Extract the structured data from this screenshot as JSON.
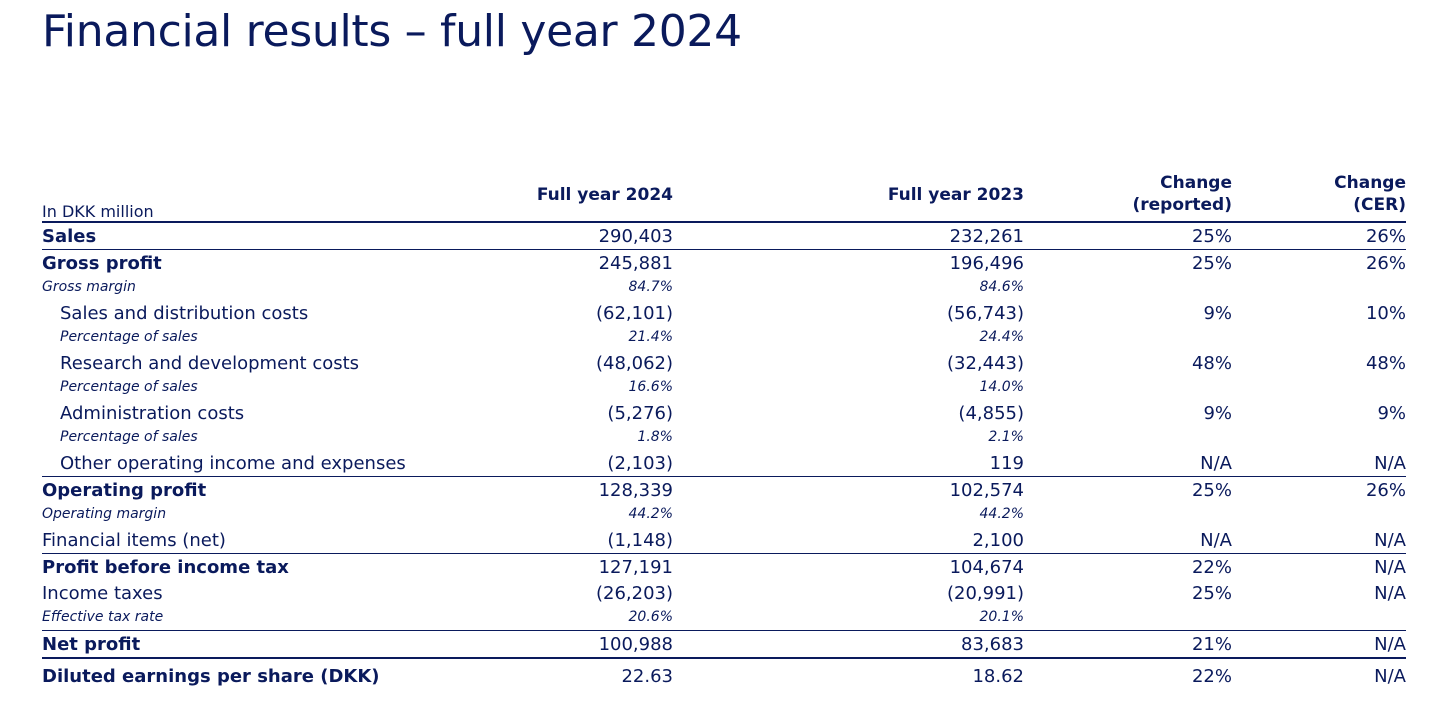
{
  "title": "Financial results – full year 2024",
  "table": {
    "unit_label": "In DKK million",
    "col_fy24": "Full year 2024",
    "col_fy23": "Full year 2023",
    "col_chg_1": "Change",
    "col_chg_2": "(reported)",
    "col_cer_1": "Change",
    "col_cer_2": "(CER)",
    "rows": [
      {
        "label": "Sales",
        "fy24": "290,403",
        "fy23": "232,261",
        "chg": "25%",
        "cer": "26%"
      },
      {
        "label": "Gross profit",
        "fy24": "245,881",
        "fy23": "196,496",
        "chg": "25%",
        "cer": "26%"
      },
      {
        "label": "Gross margin",
        "fy24": "84.7%",
        "fy23": "84.6%",
        "chg": "",
        "cer": ""
      },
      {
        "label": "Sales and distribution costs",
        "fy24": "(62,101)",
        "fy23": "(56,743)",
        "chg": "9%",
        "cer": "10%"
      },
      {
        "label": "Percentage of sales",
        "fy24": "21.4%",
        "fy23": "24.4%",
        "chg": "",
        "cer": ""
      },
      {
        "label": "Research and development costs",
        "fy24": "(48,062)",
        "fy23": "(32,443)",
        "chg": "48%",
        "cer": "48%"
      },
      {
        "label": "Percentage of sales",
        "fy24": "16.6%",
        "fy23": "14.0%",
        "chg": "",
        "cer": ""
      },
      {
        "label": "Administration costs",
        "fy24": "(5,276)",
        "fy23": "(4,855)",
        "chg": "9%",
        "cer": "9%"
      },
      {
        "label": "Percentage of sales",
        "fy24": "1.8%",
        "fy23": "2.1%",
        "chg": "",
        "cer": ""
      },
      {
        "label": "Other operating income and expenses",
        "fy24": "(2,103)",
        "fy23": "119",
        "chg": "N/A",
        "cer": "N/A"
      },
      {
        "label": "Operating profit",
        "fy24": "128,339",
        "fy23": "102,574",
        "chg": "25%",
        "cer": "26%"
      },
      {
        "label": "Operating margin",
        "fy24": "44.2%",
        "fy23": "44.2%",
        "chg": "",
        "cer": ""
      },
      {
        "label": "Financial items (net)",
        "fy24": "(1,148)",
        "fy23": "2,100",
        "chg": "N/A",
        "cer": "N/A"
      },
      {
        "label": "Profit before income tax",
        "fy24": "127,191",
        "fy23": "104,674",
        "chg": "22%",
        "cer": "N/A"
      },
      {
        "label": "Income taxes",
        "fy24": "(26,203)",
        "fy23": "(20,991)",
        "chg": "25%",
        "cer": "N/A"
      },
      {
        "label": "Effective tax rate",
        "fy24": "20.6%",
        "fy23": "20.1%",
        "chg": "",
        "cer": ""
      },
      {
        "label": "Net profit",
        "fy24": "100,988",
        "fy23": "83,683",
        "chg": "21%",
        "cer": "N/A"
      },
      {
        "label": "Diluted earnings per share (DKK)",
        "fy24": "22.63",
        "fy23": "18.62",
        "chg": "22%",
        "cer": "N/A"
      }
    ]
  }
}
